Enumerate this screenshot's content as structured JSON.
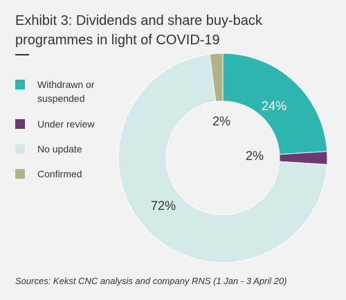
{
  "title": "Exhibit 3: Dividends and share buy-back programmes in light of COVID-19",
  "source": "Sources: Kekst CNC analysis and company RNS (1 Jan - 3 April 20)",
  "chart_data": {
    "type": "pie",
    "subtype": "donut",
    "categories": [
      "Withdrawn or suspended",
      "Under review",
      "No update",
      "Confirmed"
    ],
    "values": [
      24,
      2,
      72,
      2
    ],
    "data_labels": [
      "24%",
      "2%",
      "72%",
      "2%"
    ],
    "colors": [
      "#2fb5b0",
      "#6b3a73",
      "#d3e9ea",
      "#b2b287"
    ],
    "legend_position": "left"
  }
}
